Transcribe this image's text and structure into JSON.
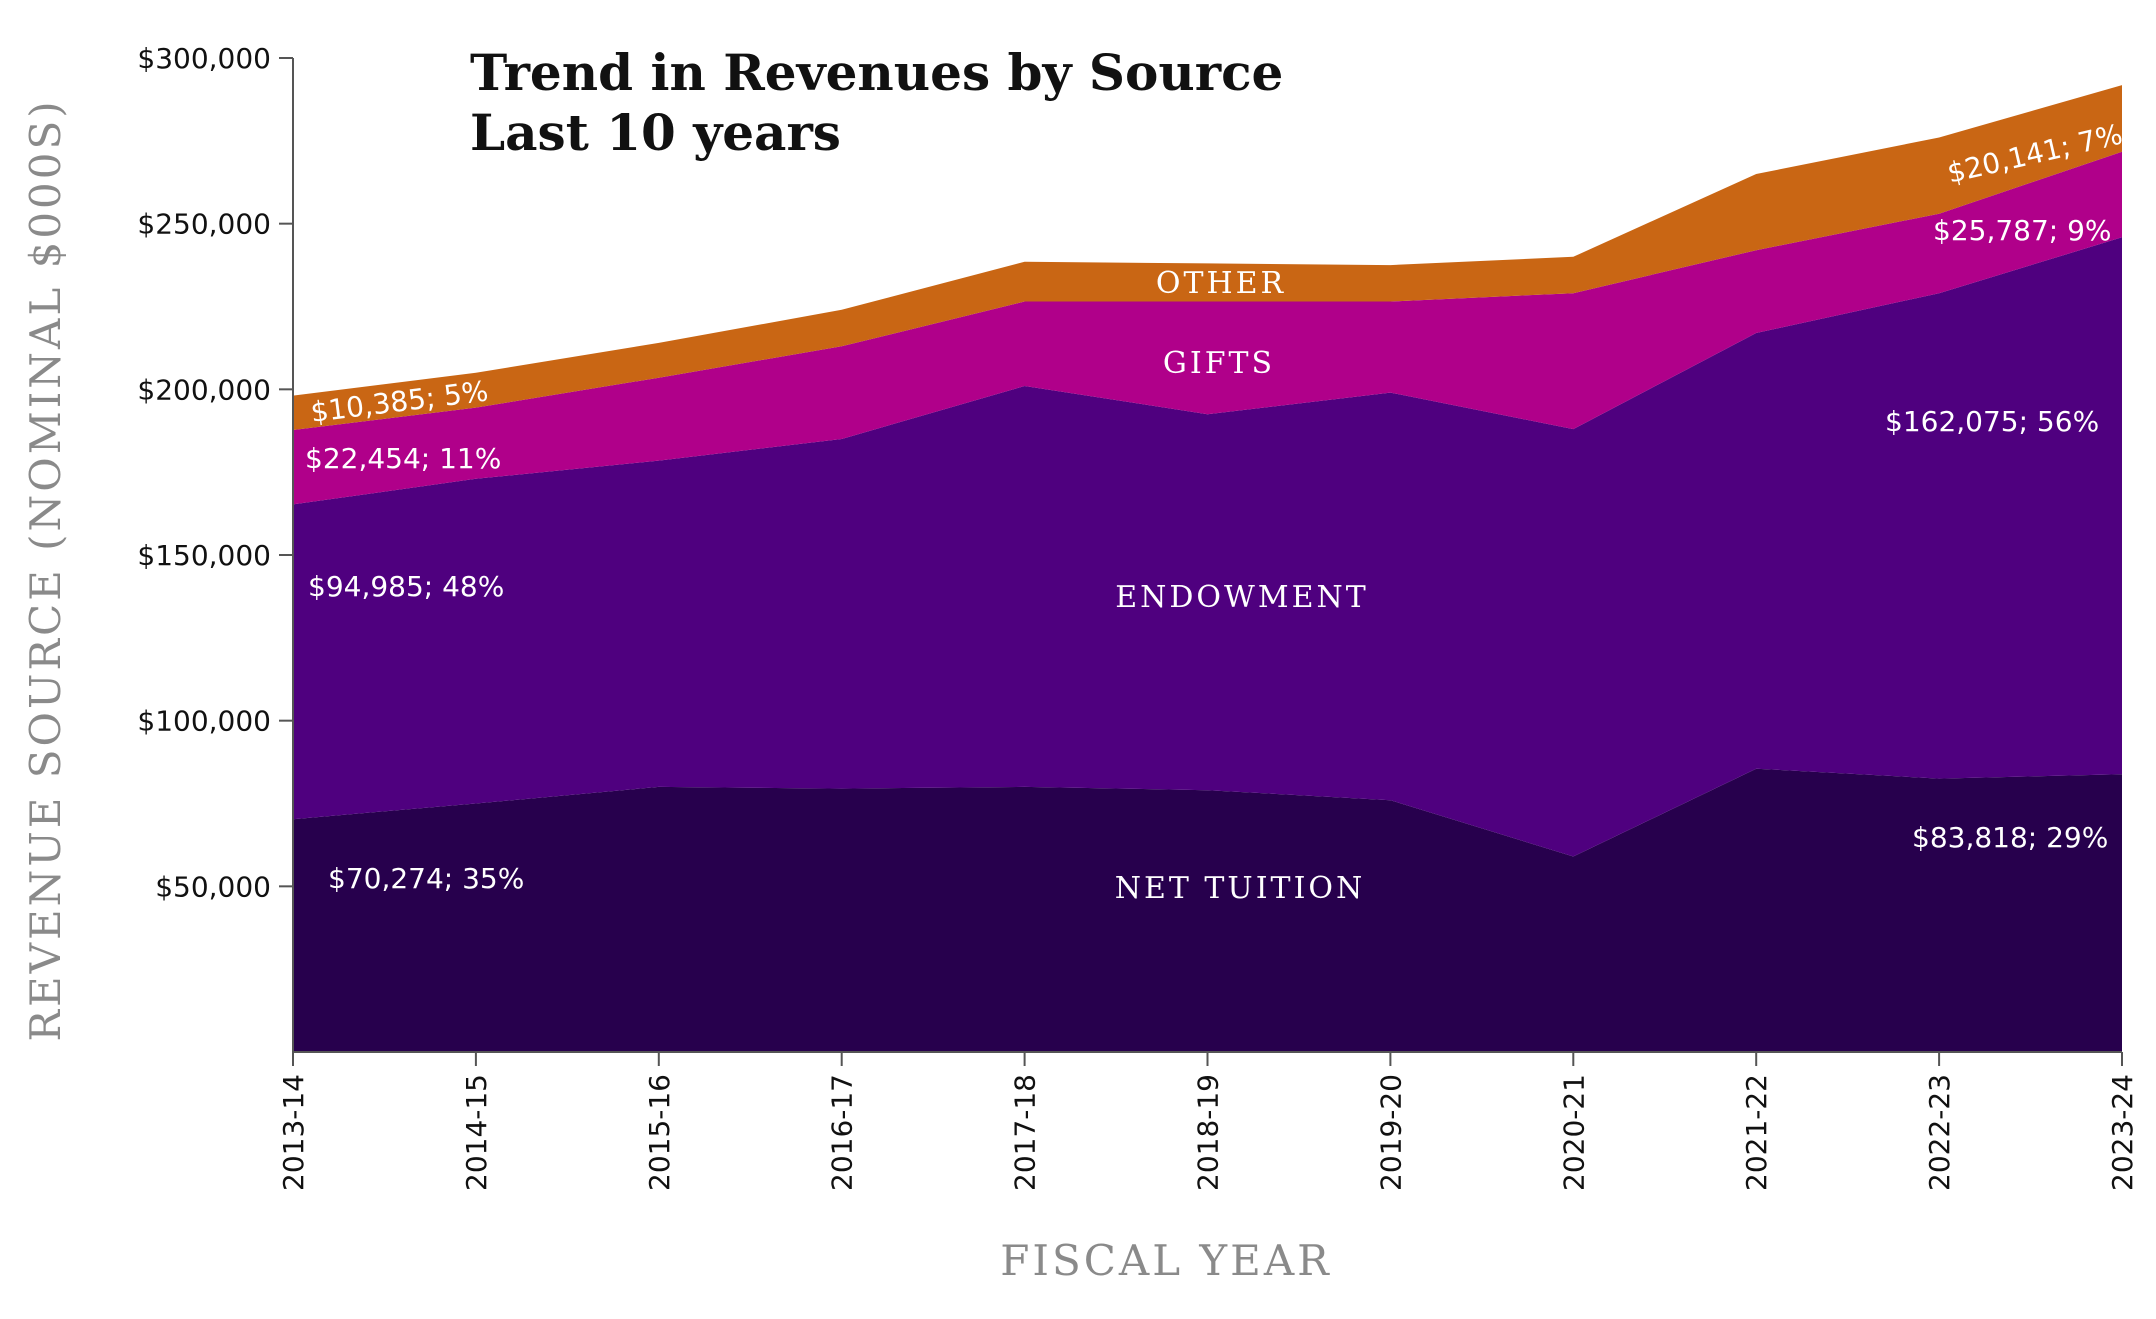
{
  "chart_data": {
    "type": "area",
    "stacked": true,
    "title": "Trend in Revenues by Source",
    "subtitle": "Last 10 years",
    "xlabel": "FISCAL YEAR",
    "ylabel": "REVENUE SOURCE (NOMINAL $000S)",
    "ylim": [
      0,
      300000
    ],
    "yticks": [
      50000,
      100000,
      150000,
      200000,
      250000,
      300000
    ],
    "ytick_labels": [
      "$50,000",
      "$100,000",
      "$150,000",
      "$200,000",
      "$250,000",
      "$300,000"
    ],
    "categories": [
      "2013-14",
      "2014-15",
      "2015-16",
      "2016-17",
      "2017-18",
      "2018-19",
      "2019-20",
      "2020-21",
      "2021-22",
      "2022-23",
      "2023-24"
    ],
    "grid": false,
    "series": [
      {
        "name": "NET TUITION",
        "color": "#27004d",
        "values": [
          70274,
          75000,
          80000,
          79500,
          80000,
          79000,
          76000,
          59000,
          85500,
          82500,
          83818
        ]
      },
      {
        "name": "ENDOWMENT",
        "color": "#4f007f",
        "values": [
          94985,
          98000,
          98500,
          105500,
          121000,
          113500,
          123000,
          129000,
          131500,
          146500,
          162075
        ]
      },
      {
        "name": "GIFTS",
        "color": "#b0008a",
        "values": [
          22454,
          21500,
          25000,
          28000,
          25500,
          34000,
          27500,
          41000,
          25000,
          24000,
          25787
        ]
      },
      {
        "name": "OTHER",
        "color": "#c96614",
        "values": [
          10385,
          10500,
          10500,
          11000,
          12000,
          11500,
          11000,
          11000,
          23000,
          23000,
          20141
        ]
      }
    ],
    "annotations": [
      "$10,385; 5%",
      "$22,454; 11%",
      "$94,985; 48%",
      "$70,274; 35%",
      "$20,141; 7%",
      "$25,787; 9%",
      "$162,075; 56%",
      "$83,818; 29%"
    ]
  }
}
